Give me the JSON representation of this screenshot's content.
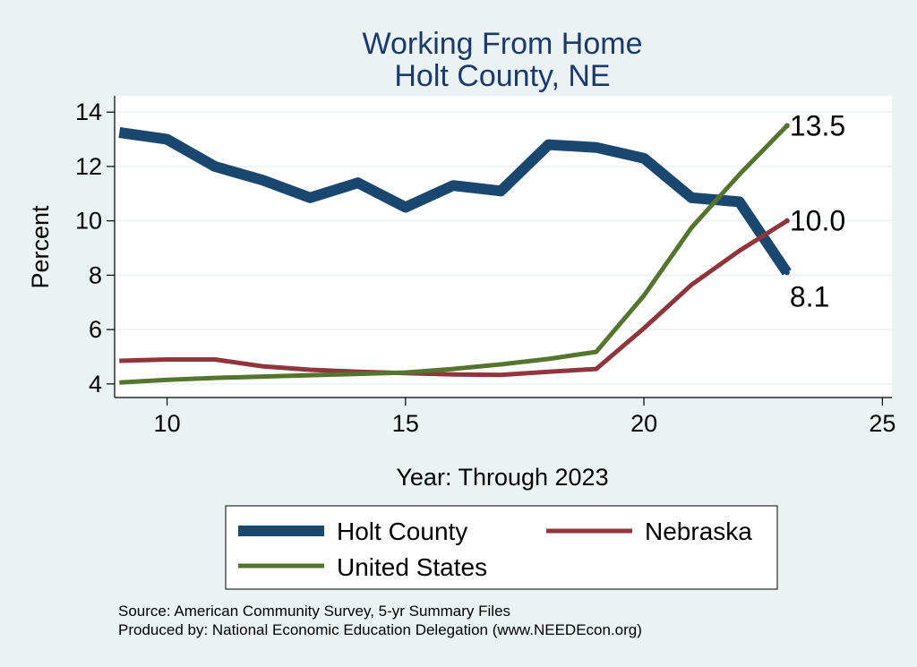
{
  "chart_data": {
    "type": "line",
    "title": "Working From Home",
    "subtitle": "Holt County, NE",
    "xlabel": "Year: Through 2023",
    "ylabel": "Percent",
    "xlim": [
      8.9,
      25.2
    ],
    "ylim": [
      3.5,
      14.6
    ],
    "x_ticks": [
      10,
      15,
      20,
      25
    ],
    "y_ticks": [
      4,
      6,
      8,
      10,
      12,
      14
    ],
    "grid": true,
    "legend_position": "bottom",
    "x": [
      9,
      10,
      11,
      12,
      13,
      14,
      15,
      16,
      17,
      18,
      19,
      20,
      21,
      22,
      23
    ],
    "series": [
      {
        "name": "Holt County",
        "color": "#1a476f",
        "values": [
          13.25,
          13.0,
          12.0,
          11.5,
          10.85,
          11.4,
          10.5,
          11.3,
          11.1,
          12.8,
          12.7,
          12.3,
          10.85,
          10.7,
          8.1
        ],
        "end_label": "8.1"
      },
      {
        "name": "Nebraska",
        "color": "#90353b",
        "values": [
          4.85,
          4.9,
          4.9,
          4.65,
          4.52,
          4.45,
          4.4,
          4.35,
          4.33,
          4.45,
          4.55,
          6.05,
          7.65,
          8.9,
          10.0
        ],
        "end_label": "10.0"
      },
      {
        "name": "United States",
        "color": "#55752f",
        "values": [
          4.05,
          4.15,
          4.22,
          4.27,
          4.32,
          4.37,
          4.42,
          4.55,
          4.72,
          4.92,
          5.18,
          7.25,
          9.75,
          11.7,
          13.5
        ],
        "end_label": "13.5"
      }
    ]
  },
  "source_note": "Source: American Community Survey, 5-yr Summary Files",
  "produced_note": "Produced by: National Economic Education Delegation (www.NEEDEcon.org)"
}
